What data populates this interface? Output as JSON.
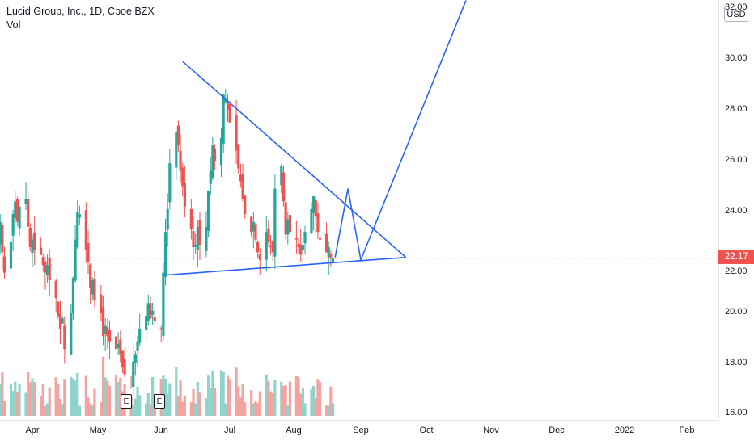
{
  "header": {
    "symbol_line": "Lucid Group, Inc., 1D, Cboe BZX",
    "volume_label": "Vol"
  },
  "price_axis": {
    "currency": "USD",
    "ticks": [
      "32.00",
      "30.00",
      "28.00",
      "26.00",
      "24.00",
      "22.00",
      "20.00",
      "18.00",
      "16.00"
    ],
    "last_price": "22.17"
  },
  "time_axis": {
    "ticks": [
      "Apr",
      "May",
      "Jun",
      "Jul",
      "Aug",
      "Sep",
      "Oct",
      "Nov",
      "Dec",
      "2022",
      "Feb"
    ]
  },
  "events": {
    "earnings": [
      {
        "label": "E",
        "date": "2021-05-24"
      },
      {
        "label": "E",
        "date": "2021-06-07"
      }
    ]
  },
  "colors": {
    "up": "#26a69a",
    "down": "#ef5350",
    "up_volume": "#8fd3cb",
    "down_volume": "#f5a3a1",
    "drawing": "#2962ff",
    "last_price": "#ef5350"
  },
  "chart_data": {
    "type": "candlestick",
    "y_axis": {
      "min": 16,
      "max": 32.3,
      "unit": "USD"
    },
    "x_axis": {
      "start": "2021-03-08",
      "end": "2022-02-28"
    },
    "ohlc_close_series": [
      25.1,
      26.9,
      25.4,
      24.0,
      22.6,
      22.3,
      22.9,
      23.6,
      22.4,
      21.6,
      22.8,
      23.9,
      24.4,
      23.6,
      24.2,
      24.5,
      23.4,
      22.6,
      22.9,
      22.5,
      22.3,
      21.9,
      21.6,
      21.9,
      21.3,
      20.6,
      19.9,
      19.4,
      19.8,
      18.6,
      20.0,
      21.4,
      22.9,
      24.0,
      23.9,
      22.5,
      22.0,
      21.0,
      21.3,
      20.5,
      20.0,
      19.1,
      19.5,
      19.1,
      18.9,
      18.6,
      18.8,
      18.4,
      17.9,
      17.6,
      17.4,
      18.1,
      18.4,
      18.9,
      19.4,
      19.9,
      20.4,
      19.8,
      20.1,
      19.7,
      19.4,
      21.6,
      23.2,
      24.1,
      25.9,
      27.1,
      26.6,
      25.6,
      25.0,
      24.2,
      23.3,
      22.6,
      22.7,
      23.4,
      22.7,
      23.4,
      24.8,
      25.6,
      26.6,
      26.0,
      26.9,
      28.6,
      28.4,
      28.0,
      27.5,
      26.4,
      25.7,
      25.2,
      24.5,
      23.9,
      23.2,
      23.6,
      22.9,
      22.4,
      22.1,
      23.2,
      22.8,
      22.6,
      22.4,
      24.9,
      25.8,
      24.4,
      23.1,
      23.7,
      23.2,
      22.9,
      22.6,
      22.3,
      22.7,
      23.2,
      24.1,
      24.6,
      23.8,
      23.2,
      22.9,
      22.4,
      22.6,
      22.2,
      22.17
    ],
    "projection": {
      "description": "hand-drawn forecast path",
      "points": [
        {
          "date": "2021-08-20",
          "price": 22.2
        },
        {
          "date": "2021-08-26",
          "price": 24.9
        },
        {
          "date": "2021-09-01",
          "price": 22.1
        },
        {
          "date": "2021-10-20",
          "price": 32.3
        }
      ]
    },
    "triangle": {
      "upper_line": [
        {
          "date": "2021-06-10",
          "price": 29.9
        },
        {
          "date": "2021-09-22",
          "price": 22.2
        }
      ],
      "lower_line": [
        {
          "date": "2021-06-01",
          "price": 21.5
        },
        {
          "date": "2021-09-22",
          "price": 22.2
        }
      ]
    },
    "grid": false,
    "legend": "none"
  }
}
